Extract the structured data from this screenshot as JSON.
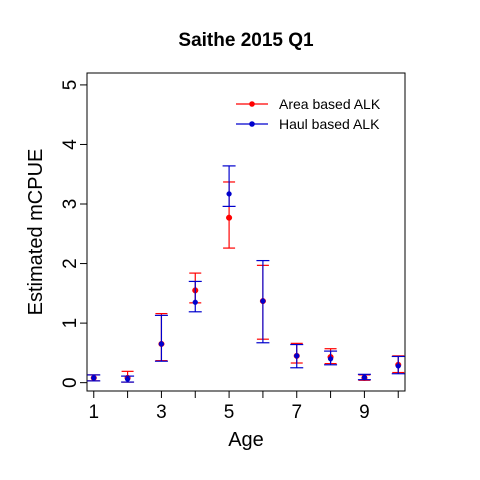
{
  "chart_data": {
    "type": "errorbar",
    "title": "Saithe 2015 Q1",
    "xlabel": "Age",
    "ylabel": "Estimated mCPUE",
    "xlim": [
      0.8,
      10.2
    ],
    "ylim": [
      -0.14,
      5.2
    ],
    "x_ticks": [
      1,
      3,
      5,
      7,
      9
    ],
    "x_minor_ticks": [
      2,
      4,
      6,
      8,
      10
    ],
    "y_ticks": [
      0,
      1,
      2,
      3,
      4,
      5
    ],
    "legend_position": "top-right",
    "series": [
      {
        "name": "Area based ALK",
        "color": "#ff0000",
        "x": [
          1,
          2,
          3,
          4,
          5,
          6,
          7,
          8,
          9,
          10
        ],
        "values": [
          0.08,
          0.08,
          0.65,
          1.55,
          2.77,
          1.37,
          0.45,
          0.43,
          0.08,
          0.3
        ],
        "lower": [
          0.03,
          0.01,
          0.37,
          1.34,
          2.26,
          0.73,
          0.33,
          0.32,
          0.04,
          0.17
        ],
        "upper": [
          0.13,
          0.19,
          1.16,
          1.84,
          3.37,
          1.97,
          0.66,
          0.57,
          0.13,
          0.45
        ]
      },
      {
        "name": "Haul based ALK",
        "color": "#0000cd",
        "x": [
          1,
          2,
          3,
          4,
          5,
          6,
          7,
          8,
          9,
          10
        ],
        "values": [
          0.08,
          0.06,
          0.65,
          1.35,
          3.17,
          1.37,
          0.45,
          0.4,
          0.09,
          0.28
        ],
        "lower": [
          0.03,
          0.01,
          0.36,
          1.19,
          2.96,
          0.67,
          0.25,
          0.3,
          0.05,
          0.15
        ],
        "upper": [
          0.13,
          0.11,
          1.13,
          1.7,
          3.64,
          2.05,
          0.64,
          0.53,
          0.14,
          0.44
        ]
      }
    ]
  }
}
